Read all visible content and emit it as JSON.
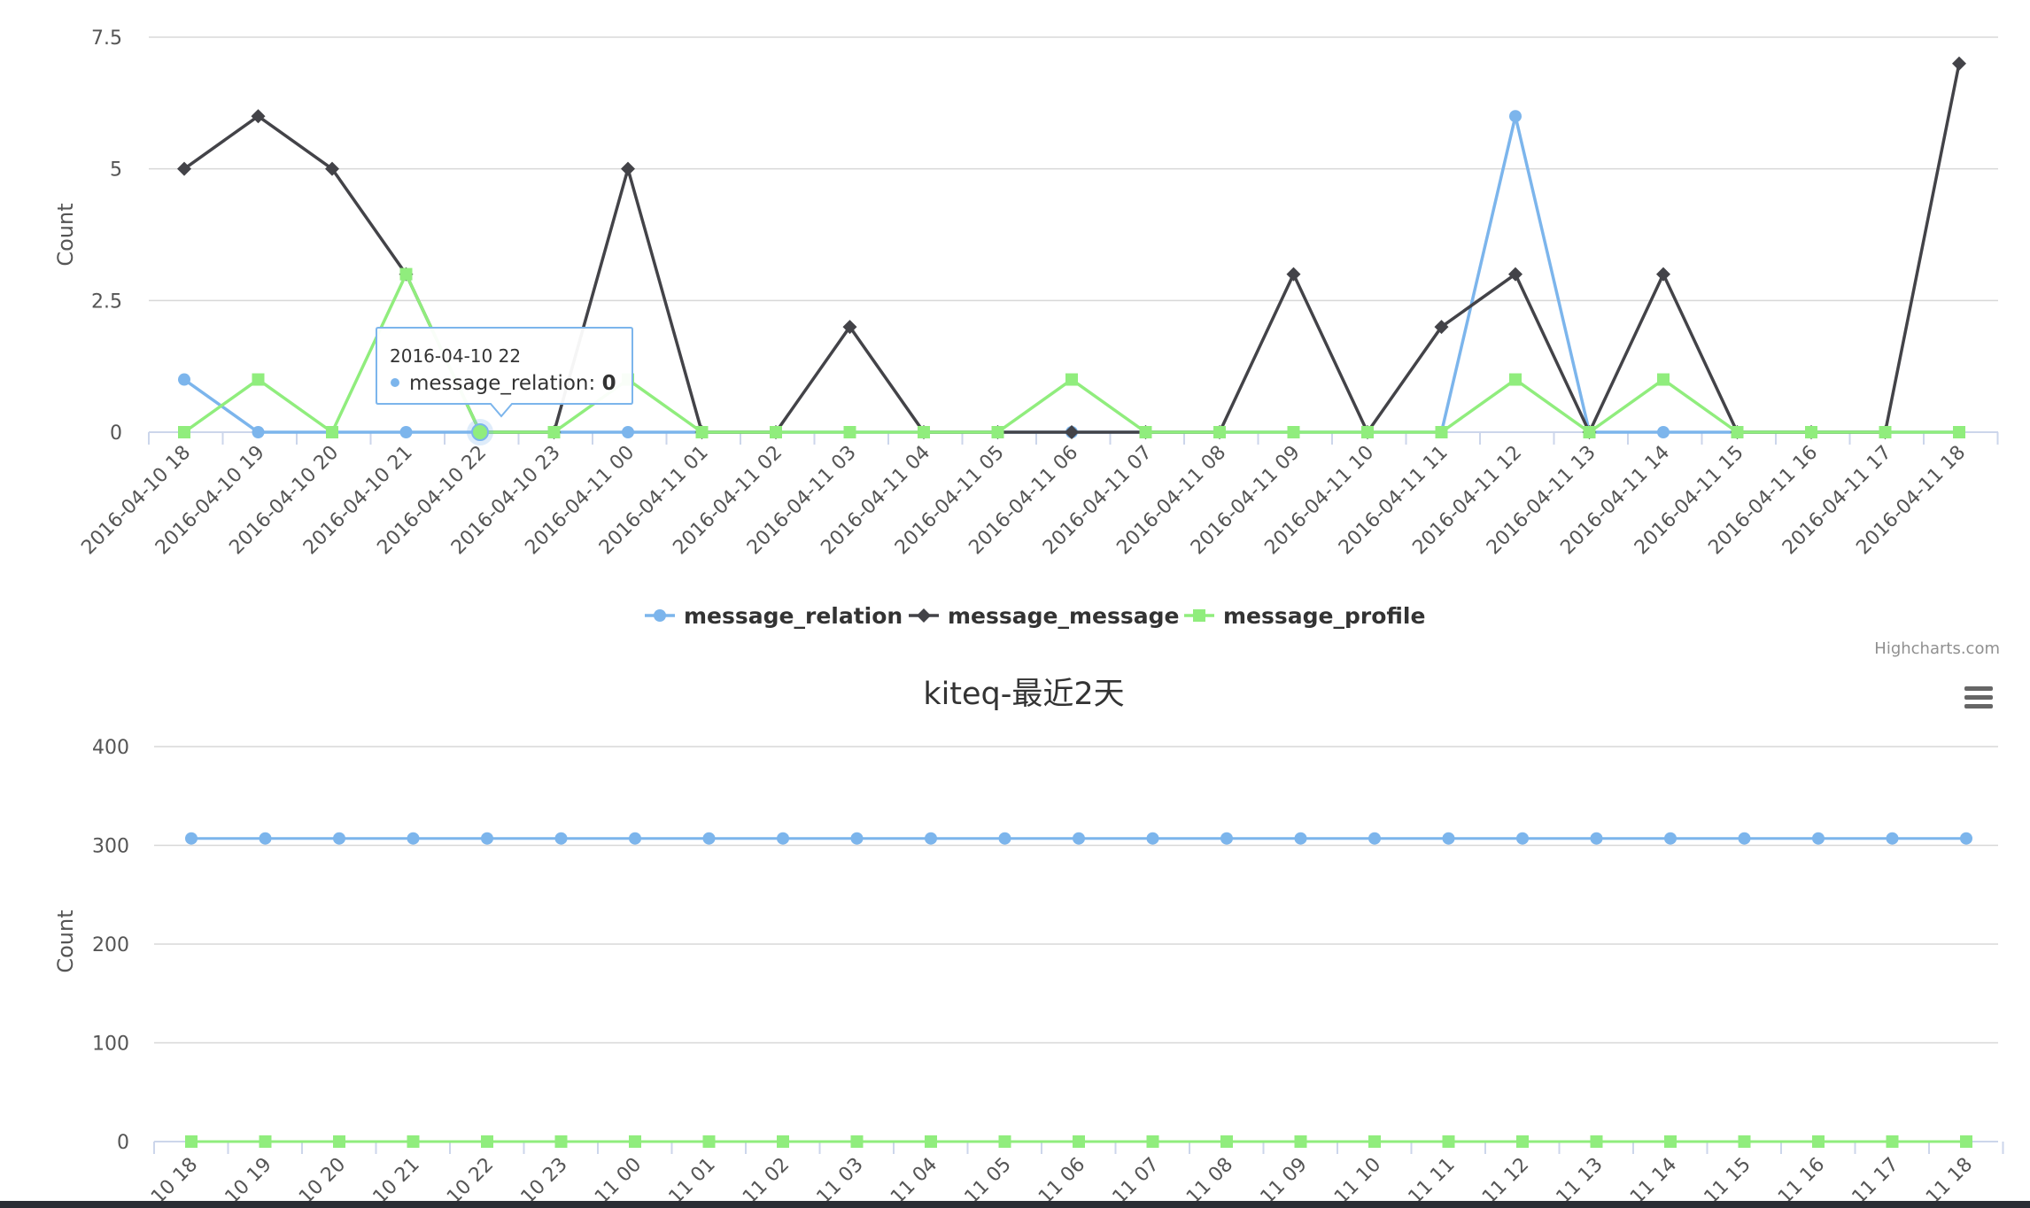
{
  "chart_data": [
    {
      "type": "line",
      "title": "",
      "ylabel": "Count",
      "ylim": [
        0,
        7.5
      ],
      "yticks": [
        "0",
        "2.5",
        "5",
        "7.5"
      ],
      "categories": [
        "2016-04-10 18",
        "2016-04-10 19",
        "2016-04-10 20",
        "2016-04-10 21",
        "2016-04-10 22",
        "2016-04-10 23",
        "2016-04-11 00",
        "2016-04-11 01",
        "2016-04-11 02",
        "2016-04-11 03",
        "2016-04-11 04",
        "2016-04-11 05",
        "2016-04-11 06",
        "2016-04-11 07",
        "2016-04-11 08",
        "2016-04-11 09",
        "2016-04-11 10",
        "2016-04-11 11",
        "2016-04-11 12",
        "2016-04-11 13",
        "2016-04-11 14",
        "2016-04-11 15",
        "2016-04-11 16",
        "2016-04-11 17",
        "2016-04-11 18"
      ],
      "series": [
        {
          "name": "message_relation",
          "color": "#7cb5ec",
          "marker": "circle",
          "values": [
            1,
            0,
            0,
            0,
            0,
            0,
            0,
            0,
            0,
            0,
            0,
            0,
            0,
            0,
            0,
            0,
            0,
            0,
            6,
            0,
            0,
            0,
            0,
            0,
            0
          ]
        },
        {
          "name": "message_message",
          "color": "#434348",
          "marker": "diamond",
          "values": [
            5,
            6,
            5,
            3,
            0,
            0,
            5,
            0,
            0,
            2,
            0,
            0,
            0,
            0,
            0,
            3,
            0,
            2,
            3,
            0,
            3,
            0,
            0,
            0,
            7
          ]
        },
        {
          "name": "message_profile",
          "color": "#90ed7d",
          "marker": "square",
          "values": [
            0,
            1,
            0,
            3,
            0,
            0,
            1,
            0,
            0,
            0,
            0,
            0,
            1,
            0,
            0,
            0,
            0,
            0,
            1,
            0,
            1,
            0,
            0,
            0,
            0
          ]
        }
      ],
      "legend": "bottom-center",
      "grid": true,
      "credits": "Highcharts.com",
      "tooltip": {
        "header": "2016-04-10 22",
        "series": "message_relation",
        "value": "0"
      }
    },
    {
      "type": "line",
      "title": "kiteq-最近2天",
      "ylabel": "Count",
      "ylim": [
        0,
        400
      ],
      "yticks": [
        "0",
        "100",
        "200",
        "300",
        "400"
      ],
      "categories": [
        "10 18",
        "10 19",
        "10 20",
        "10 21",
        "10 22",
        "10 23",
        "11 00",
        "11 01",
        "11 02",
        "11 03",
        "11 04",
        "11 05",
        "11 06",
        "11 07",
        "11 08",
        "11 09",
        "11 10",
        "11 11",
        "11 12",
        "11 13",
        "11 14",
        "11 15",
        "11 16",
        "11 17",
        "11 18"
      ],
      "series": [
        {
          "name": "",
          "color": "#7cb5ec",
          "marker": "circle",
          "values": [
            307,
            307,
            307,
            307,
            307,
            307,
            307,
            307,
            307,
            307,
            307,
            307,
            307,
            307,
            307,
            307,
            307,
            307,
            307,
            307,
            307,
            307,
            307,
            307,
            307
          ]
        },
        {
          "name": "",
          "color": "#90ed7d",
          "marker": "square",
          "values": [
            0,
            0,
            0,
            0,
            0,
            0,
            0,
            0,
            0,
            0,
            0,
            0,
            0,
            0,
            0,
            0,
            0,
            0,
            0,
            0,
            0,
            0,
            0,
            0,
            0
          ]
        }
      ],
      "grid": true,
      "menu_icon": "hamburger-menu-icon"
    }
  ]
}
